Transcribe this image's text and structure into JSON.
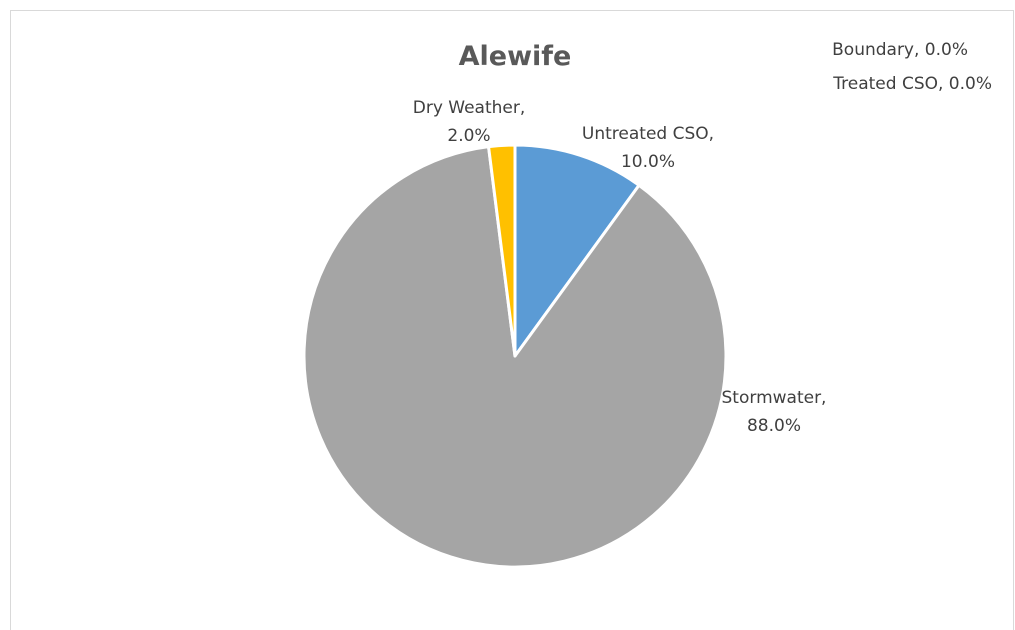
{
  "chart_data": {
    "type": "pie",
    "title": "Alewife",
    "categories": [
      "Untreated CSO",
      "Stormwater",
      "Dry Weather",
      "Boundary",
      "Treated CSO"
    ],
    "values": [
      10.0,
      88.0,
      2.0,
      0.0,
      0.0
    ],
    "labels": [
      [
        "Untreated CSO,",
        "10.0%"
      ],
      [
        "Stormwater,",
        "88.0%"
      ],
      [
        "Dry Weather,",
        "2.0%"
      ],
      [
        "Boundary, 0.0%"
      ],
      [
        "Treated CSO, 0.0%"
      ]
    ],
    "colors": [
      "#5b9bd5",
      "#a5a5a5",
      "#ffc000",
      "#ed7d31",
      "#4472c4"
    ],
    "start_angle_deg": 0,
    "direction": "clockwise",
    "legend": "none"
  }
}
